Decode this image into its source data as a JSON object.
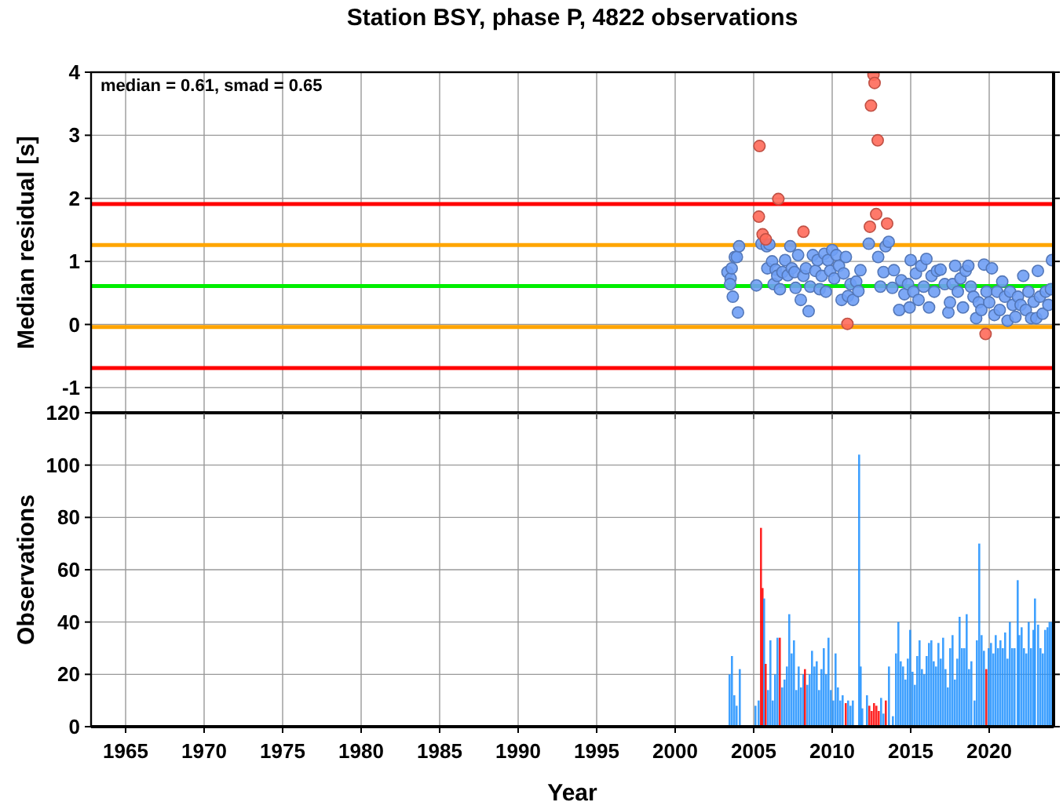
{
  "chart_data": [
    {
      "type": "scatter",
      "title": "Station BSY, phase P, 4822 observations",
      "ylabel": "Median residual [s]",
      "annotations": [
        "median = 0.61, smad = 0.65"
      ],
      "xlim": [
        1962.8,
        2024.1
      ],
      "xticks": [
        1965,
        1970,
        1975,
        1980,
        1985,
        1990,
        1995,
        2000,
        2005,
        2010,
        2015,
        2020
      ],
      "ylim": [
        -1.4,
        4
      ],
      "yticks": [
        -1,
        0,
        1,
        2,
        3,
        4
      ],
      "grid": true,
      "tick_labels": "y",
      "marker": "circle",
      "ref_lines": [
        {
          "axis": "y",
          "value": 1.91,
          "color": "#ff0000"
        },
        {
          "axis": "y",
          "value": 1.26,
          "color": "#ffa500"
        },
        {
          "axis": "y",
          "value": 0.61,
          "color": "#00ee00"
        },
        {
          "axis": "y",
          "value": -0.04,
          "color": "#ffa500"
        },
        {
          "axis": "y",
          "value": -0.69,
          "color": "#ff0000"
        }
      ],
      "series": [
        {
          "color": "#6f9ef5",
          "x": [
            2003.33,
            2003.53,
            2003.6,
            2003.67,
            2003.8,
            2003.93,
            2004.0,
            2004.07,
            2003.5,
            2005.17,
            2005.5,
            2005.83,
            2006.0,
            2005.87,
            2006.17,
            2006.27,
            2006.4,
            2006.5,
            2006.67,
            2006.83,
            2007.0,
            2007.17,
            2007.33,
            2007.43,
            2007.6,
            2007.67,
            2007.83,
            2008.0,
            2008.17,
            2008.33,
            2008.5,
            2008.6,
            2008.77,
            2008.93,
            2009.07,
            2009.2,
            2009.33,
            2009.5,
            2009.6,
            2009.73,
            2009.87,
            2010.0,
            2010.13,
            2010.27,
            2010.43,
            2010.6,
            2010.73,
            2010.87,
            2011.0,
            2011.17,
            2011.33,
            2011.53,
            2011.67,
            2011.8,
            2012.33,
            2012.93,
            2013.07,
            2013.27,
            2013.4,
            2013.6,
            2013.83,
            2013.93,
            2014.27,
            2014.4,
            2014.6,
            2014.83,
            2014.93,
            2015.0,
            2015.17,
            2015.33,
            2015.5,
            2015.67,
            2015.83,
            2016.0,
            2016.17,
            2016.33,
            2016.5,
            2016.67,
            2016.9,
            2017.17,
            2017.4,
            2017.5,
            2017.67,
            2017.83,
            2018.0,
            2018.17,
            2018.33,
            2018.5,
            2018.67,
            2018.83,
            2019.0,
            2019.17,
            2019.33,
            2019.5,
            2019.67,
            2019.83,
            2020.0,
            2020.17,
            2020.33,
            2020.5,
            2020.67,
            2020.83,
            2021.0,
            2021.17,
            2021.33,
            2021.5,
            2021.67,
            2021.83,
            2022.0,
            2022.17,
            2022.33,
            2022.5,
            2022.67,
            2022.83,
            2023.0,
            2023.1,
            2023.23,
            2023.4,
            2023.6,
            2023.77,
            2023.93,
            2024.0
          ],
          "values": [
            0.83,
            0.73,
            0.89,
            0.44,
            1.07,
            1.07,
            0.19,
            1.24,
            0.64,
            0.62,
            1.28,
            1.24,
            1.27,
            0.89,
            1.0,
            0.64,
            0.87,
            0.77,
            0.56,
            0.83,
            1.02,
            0.78,
            1.24,
            0.89,
            0.83,
            0.58,
            1.1,
            0.39,
            0.77,
            0.89,
            0.21,
            0.6,
            1.1,
            0.85,
            1.02,
            0.56,
            0.77,
            1.12,
            0.52,
            1.02,
            0.85,
            1.18,
            0.73,
            1.1,
            0.93,
            0.39,
            0.81,
            1.07,
            0.45,
            0.64,
            0.39,
            0.68,
            0.53,
            0.86,
            1.28,
            1.07,
            0.6,
            0.83,
            1.24,
            1.31,
            0.58,
            0.86,
            0.23,
            0.7,
            0.48,
            0.64,
            0.27,
            1.02,
            0.52,
            0.81,
            0.39,
            0.93,
            0.6,
            1.04,
            0.27,
            0.77,
            0.52,
            0.85,
            0.87,
            0.64,
            0.19,
            0.35,
            0.64,
            0.93,
            0.52,
            0.73,
            0.27,
            0.85,
            0.93,
            0.6,
            0.44,
            0.1,
            0.35,
            0.23,
            0.95,
            0.52,
            0.35,
            0.89,
            0.15,
            0.52,
            0.23,
            0.68,
            0.44,
            0.06,
            0.52,
            0.31,
            0.12,
            0.44,
            0.31,
            0.77,
            0.23,
            0.52,
            0.1,
            0.36,
            0.1,
            0.85,
            0.44,
            0.17,
            0.52,
            0.31,
            0.56,
            1.02
          ]
        },
        {
          "color": "#ff6a5a",
          "x": [
            2005.37,
            2006.57,
            2005.33,
            2005.57,
            2005.77,
            2008.17,
            2010.97,
            2012.63,
            2012.7,
            2012.47,
            2012.9,
            2012.8,
            2012.4,
            2013.5,
            2019.77
          ],
          "values": [
            2.83,
            1.99,
            1.71,
            1.43,
            1.35,
            1.47,
            0.01,
            3.96,
            3.83,
            3.47,
            2.92,
            1.75,
            1.55,
            1.6,
            -0.15
          ]
        }
      ]
    },
    {
      "type": "bar",
      "xlabel": "Year",
      "ylabel": "Observations",
      "xlim": [
        1962.8,
        2024.1
      ],
      "xticks": [
        1965,
        1970,
        1975,
        1980,
        1985,
        1990,
        1995,
        2000,
        2005,
        2010,
        2015,
        2020
      ],
      "ylim": [
        0,
        120
      ],
      "yticks": [
        0,
        20,
        40,
        60,
        80,
        100,
        120
      ],
      "grid": true,
      "x": [
        2003.4,
        2003.55,
        2003.7,
        2003.85,
        2004.05,
        2005.05,
        2005.25,
        2005.4,
        2005.5,
        2005.6,
        2005.7,
        2005.85,
        2006.0,
        2006.15,
        2006.3,
        2006.45,
        2006.6,
        2006.75,
        2006.9,
        2007.05,
        2007.2,
        2007.35,
        2007.5,
        2007.65,
        2007.8,
        2007.95,
        2008.1,
        2008.2,
        2008.35,
        2008.5,
        2008.65,
        2008.8,
        2008.95,
        2009.1,
        2009.25,
        2009.4,
        2009.55,
        2009.7,
        2009.85,
        2010.0,
        2010.15,
        2010.3,
        2010.45,
        2010.6,
        2010.8,
        2010.95,
        2011.1,
        2011.25,
        2011.65,
        2011.75,
        2011.85,
        2012.15,
        2012.3,
        2012.45,
        2012.6,
        2012.75,
        2012.9,
        2013.05,
        2013.2,
        2013.35,
        2013.55,
        2013.8,
        2014.0,
        2014.15,
        2014.3,
        2014.45,
        2014.6,
        2014.75,
        2014.9,
        2015.05,
        2015.2,
        2015.35,
        2015.5,
        2015.65,
        2015.8,
        2015.95,
        2016.1,
        2016.25,
        2016.4,
        2016.55,
        2016.7,
        2016.85,
        2017.0,
        2017.15,
        2017.3,
        2017.45,
        2017.6,
        2017.75,
        2017.9,
        2018.05,
        2018.2,
        2018.35,
        2018.5,
        2018.65,
        2018.8,
        2019.0,
        2019.15,
        2019.3,
        2019.45,
        2019.6,
        2019.75,
        2019.9,
        2020.05,
        2020.2,
        2020.35,
        2020.5,
        2020.65,
        2020.8,
        2020.95,
        2021.1,
        2021.25,
        2021.4,
        2021.55,
        2021.75,
        2021.85,
        2022.0,
        2022.15,
        2022.3,
        2022.45,
        2022.6,
        2022.75,
        2022.85,
        2023.05,
        2023.2,
        2023.35,
        2023.5,
        2023.65,
        2023.78,
        2023.91
      ],
      "values": [
        20,
        27,
        12,
        8,
        22,
        8,
        10,
        76,
        53,
        49,
        24,
        14,
        33,
        10,
        20,
        34,
        34,
        15,
        18,
        23,
        43,
        28,
        33,
        14,
        23,
        15,
        20,
        22,
        16,
        20,
        29,
        23,
        25,
        14,
        22,
        30,
        20,
        34,
        14,
        10,
        28,
        15,
        10,
        12,
        9,
        10,
        8,
        10,
        104,
        23,
        7,
        12,
        8,
        6,
        9,
        8,
        6,
        11,
        5,
        10,
        23,
        4,
        28,
        40,
        25,
        23,
        18,
        26,
        37,
        21,
        16,
        27,
        33,
        22,
        20,
        27,
        32,
        33,
        25,
        23,
        32,
        26,
        34,
        22,
        15,
        30,
        35,
        18,
        26,
        42,
        30,
        30,
        43,
        22,
        25,
        10,
        33,
        70,
        35,
        29,
        22,
        30,
        32,
        28,
        35,
        30,
        33,
        30,
        36,
        26,
        40,
        30,
        30,
        56,
        35,
        38,
        30,
        28,
        40,
        30,
        37,
        49,
        39,
        30,
        28,
        37,
        38,
        40,
        40
      ],
      "colors": [
        "#1e90ff",
        "#1e90ff",
        "#1e90ff",
        "#1e90ff",
        "#1e90ff",
        "#1e90ff",
        "#1e90ff",
        "#ff0000",
        "#ff0000",
        "#1e90ff",
        "#ff0000",
        "#1e90ff",
        "#1e90ff",
        "#1e90ff",
        "#1e90ff",
        "#1e90ff",
        "#ff0000",
        "#1e90ff",
        "#1e90ff",
        "#1e90ff",
        "#1e90ff",
        "#1e90ff",
        "#1e90ff",
        "#1e90ff",
        "#1e90ff",
        "#1e90ff",
        "#1e90ff",
        "#ff0000",
        "#1e90ff",
        "#1e90ff",
        "#1e90ff",
        "#1e90ff",
        "#1e90ff",
        "#1e90ff",
        "#1e90ff",
        "#1e90ff",
        "#1e90ff",
        "#1e90ff",
        "#1e90ff",
        "#1e90ff",
        "#1e90ff",
        "#1e90ff",
        "#1e90ff",
        "#1e90ff",
        "#ff0000",
        "#1e90ff",
        "#1e90ff",
        "#1e90ff",
        "#1e90ff",
        "#1e90ff",
        "#1e90ff",
        "#1e90ff",
        "#ff0000",
        "#ff0000",
        "#ff0000",
        "#ff0000",
        "#ff0000",
        "#1e90ff",
        "#1e90ff",
        "#ff0000",
        "#1e90ff",
        "#1e90ff",
        "#1e90ff",
        "#1e90ff",
        "#1e90ff",
        "#1e90ff",
        "#1e90ff",
        "#1e90ff",
        "#1e90ff",
        "#1e90ff",
        "#1e90ff",
        "#1e90ff",
        "#1e90ff",
        "#1e90ff",
        "#1e90ff",
        "#1e90ff",
        "#1e90ff",
        "#1e90ff",
        "#1e90ff",
        "#1e90ff",
        "#1e90ff",
        "#1e90ff",
        "#1e90ff",
        "#1e90ff",
        "#1e90ff",
        "#1e90ff",
        "#1e90ff",
        "#1e90ff",
        "#1e90ff",
        "#1e90ff",
        "#1e90ff",
        "#1e90ff",
        "#1e90ff",
        "#1e90ff",
        "#1e90ff",
        "#1e90ff",
        "#1e90ff",
        "#1e90ff",
        "#1e90ff",
        "#1e90ff",
        "#ff0000",
        "#1e90ff",
        "#1e90ff",
        "#1e90ff",
        "#1e90ff",
        "#1e90ff",
        "#1e90ff",
        "#1e90ff",
        "#1e90ff",
        "#1e90ff",
        "#1e90ff",
        "#1e90ff",
        "#1e90ff",
        "#1e90ff",
        "#1e90ff",
        "#1e90ff",
        "#1e90ff",
        "#1e90ff",
        "#1e90ff",
        "#1e90ff",
        "#1e90ff",
        "#1e90ff",
        "#1e90ff",
        "#1e90ff",
        "#1e90ff",
        "#1e90ff",
        "#1e90ff",
        "#1e90ff",
        "#1e90ff"
      ]
    }
  ]
}
